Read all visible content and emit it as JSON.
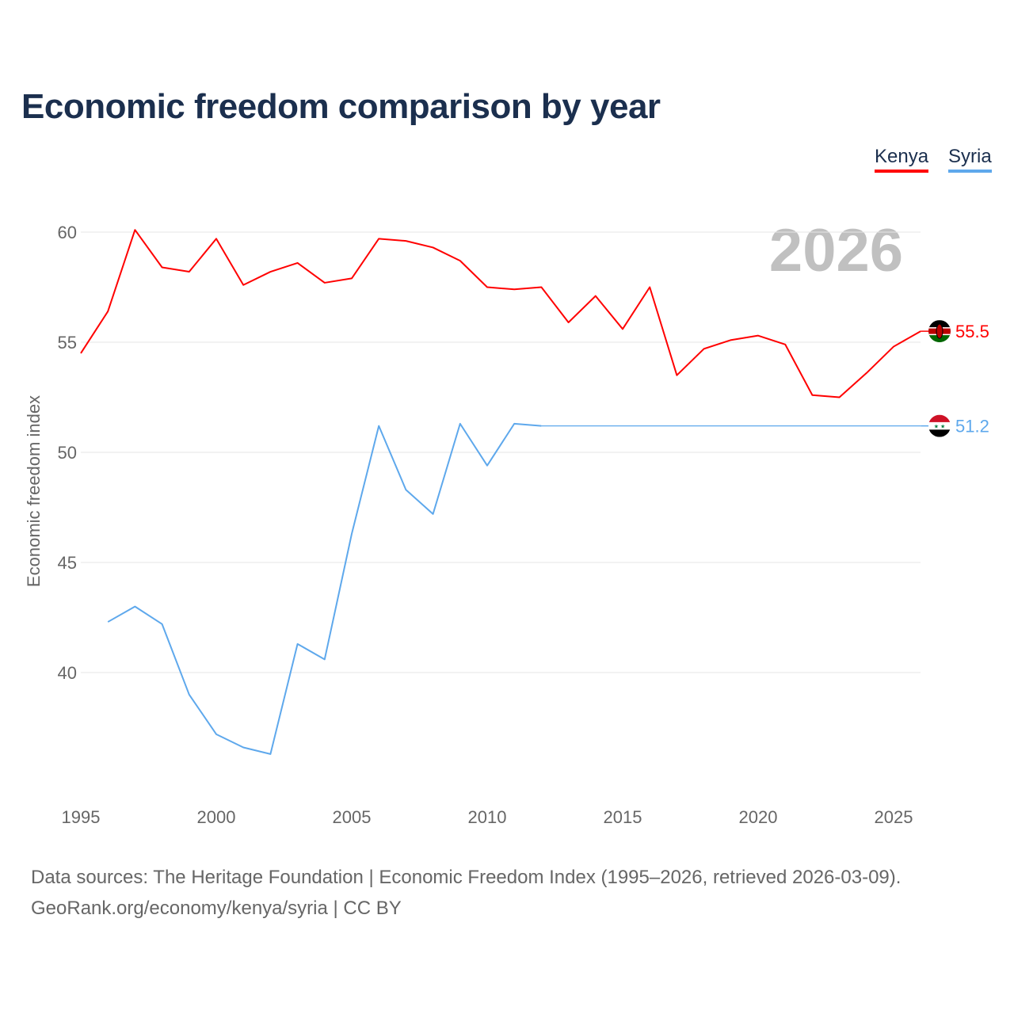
{
  "chart_data": {
    "type": "line",
    "title": "Economic freedom comparison by year",
    "xlabel": "",
    "ylabel": "Economic freedom index",
    "xlim": [
      1995,
      2026
    ],
    "ylim": [
      35,
      62
    ],
    "x_ticks": [
      "1995",
      "2000",
      "2005",
      "2010",
      "2015",
      "2020",
      "2025"
    ],
    "y_ticks": [
      "40",
      "45",
      "50",
      "55",
      "60"
    ],
    "grid": true,
    "legend_position": "top-right",
    "year_watermark": "2026",
    "series": [
      {
        "name": "Kenya",
        "color": "#ff0000",
        "end_label": "55.5",
        "x": [
          1995,
          1996,
          1997,
          1998,
          1999,
          2000,
          2001,
          2002,
          2003,
          2004,
          2005,
          2006,
          2007,
          2008,
          2009,
          2010,
          2011,
          2012,
          2013,
          2014,
          2015,
          2016,
          2017,
          2018,
          2019,
          2020,
          2021,
          2022,
          2023,
          2024,
          2025,
          2026
        ],
        "values": [
          54.5,
          56.4,
          60.1,
          58.4,
          58.2,
          59.7,
          57.6,
          58.2,
          58.6,
          57.7,
          57.9,
          59.7,
          59.6,
          59.3,
          58.7,
          57.5,
          57.4,
          57.5,
          55.9,
          57.1,
          55.6,
          57.5,
          53.5,
          54.7,
          55.1,
          55.3,
          54.9,
          52.6,
          52.5,
          53.6,
          54.8,
          55.5
        ]
      },
      {
        "name": "Syria",
        "color": "#5ea8ec",
        "end_label": "51.2",
        "x": [
          1996,
          1997,
          1998,
          1999,
          2000,
          2001,
          2002,
          2003,
          2004,
          2005,
          2006,
          2007,
          2008,
          2009,
          2010,
          2011,
          2012
        ],
        "values": [
          42.3,
          43.0,
          42.2,
          39.0,
          37.2,
          36.6,
          36.3,
          41.3,
          40.6,
          46.3,
          51.2,
          48.3,
          47.2,
          51.3,
          49.4,
          51.3,
          51.2
        ],
        "carried_forward_to": 2026
      }
    ]
  },
  "footer": {
    "line1": "Data sources: The Heritage Foundation | Economic Freedom Index (1995–2026, retrieved 2026-03-09).",
    "line2": "GeoRank.org/economy/kenya/syria | CC BY"
  }
}
